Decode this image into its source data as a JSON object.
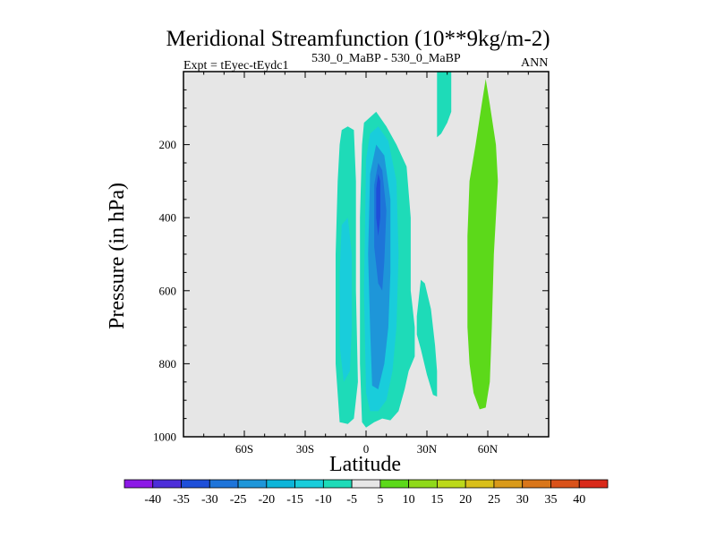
{
  "chart_data": {
    "type": "contour",
    "title": "Meridional Streamfunction (10**9kg/m-2)",
    "left_string": "Expt = tEyec-tEydc1",
    "center_string": "530_0_MaBP - 530_0_MaBP",
    "right_string": "ANN",
    "xlabel": "Latitude",
    "ylabel": "Pressure (in hPa)",
    "xlim": [
      -90,
      90
    ],
    "ylim": [
      1000,
      0
    ],
    "x_ticks": [
      {
        "value": -60,
        "label": "60S"
      },
      {
        "value": -30,
        "label": "30S"
      },
      {
        "value": 0,
        "label": "0"
      },
      {
        "value": 30,
        "label": "30N"
      },
      {
        "value": 60,
        "label": "60N"
      }
    ],
    "y_ticks": [
      {
        "value": 200,
        "label": "200"
      },
      {
        "value": 400,
        "label": "400"
      },
      {
        "value": 600,
        "label": "600"
      },
      {
        "value": 800,
        "label": "800"
      },
      {
        "value": 1000,
        "label": "1000"
      }
    ],
    "background_color": "#e6e6e6",
    "contour_levels": [
      -40,
      -35,
      -30,
      -25,
      -20,
      -15,
      -10,
      -5,
      5,
      10,
      15,
      20,
      25,
      30,
      35,
      40
    ],
    "contour_colors": [
      "#8c19e6",
      "#4d2ed9",
      "#1e4fd9",
      "#1e74d9",
      "#1e96d9",
      "#0db5d9",
      "#19cddb",
      "#1edbb8",
      "#e6e6e6",
      "#5cd91a",
      "#8fd91a",
      "#bcd91a",
      "#d9bf1a",
      "#d99a1a",
      "#d9761a",
      "#d9521a",
      "#d92a1a"
    ],
    "regions": [
      {
        "name": "cell-sh-outer",
        "value": "-10 to -5",
        "color": "#1edbb8",
        "polygon": [
          [
            -12,
            160
          ],
          [
            -9,
            150
          ],
          [
            -6,
            160
          ],
          [
            -5,
            300
          ],
          [
            -5,
            600
          ],
          [
            -4,
            850
          ],
          [
            -6,
            950
          ],
          [
            -9,
            965
          ],
          [
            -13,
            960
          ],
          [
            -15,
            800
          ],
          [
            -15,
            500
          ],
          [
            -14,
            300
          ],
          [
            -13,
            200
          ]
        ]
      },
      {
        "name": "cell-sh-inner",
        "value": "-15 to -10",
        "color": "#19cddb",
        "polygon": [
          [
            -12,
            420
          ],
          [
            -9,
            400
          ],
          [
            -7,
            500
          ],
          [
            -7,
            700
          ],
          [
            -8,
            820
          ],
          [
            -11,
            850
          ],
          [
            -13,
            750
          ],
          [
            -13,
            550
          ]
        ]
      },
      {
        "name": "cell-eq-outer",
        "value": "-10 to -5",
        "color": "#1edbb8",
        "polygon": [
          [
            -2,
            200
          ],
          [
            -1,
            140
          ],
          [
            5,
            110
          ],
          [
            10,
            150
          ],
          [
            15,
            200
          ],
          [
            20,
            260
          ],
          [
            22,
            400
          ],
          [
            22,
            600
          ],
          [
            24,
            700
          ],
          [
            24,
            780
          ],
          [
            21,
            820
          ],
          [
            19,
            870
          ],
          [
            16,
            930
          ],
          [
            12,
            955
          ],
          [
            8,
            950
          ],
          [
            4,
            960
          ],
          [
            0,
            975
          ],
          [
            -2,
            960
          ],
          [
            -3,
            800
          ],
          [
            -3,
            400
          ]
        ]
      },
      {
        "name": "cell-eq-mid",
        "value": "-15 to -10",
        "color": "#19cddb",
        "polygon": [
          [
            0,
            240
          ],
          [
            2,
            170
          ],
          [
            6,
            150
          ],
          [
            11,
            190
          ],
          [
            15,
            300
          ],
          [
            16,
            500
          ],
          [
            15,
            700
          ],
          [
            13,
            820
          ],
          [
            10,
            900
          ],
          [
            6,
            930
          ],
          [
            2,
            930
          ],
          [
            0,
            880
          ],
          [
            -1,
            600
          ]
        ]
      },
      {
        "name": "cell-eq-inner",
        "value": "-20 to -15",
        "color": "#1e96d9",
        "polygon": [
          [
            2,
            280
          ],
          [
            5,
            200
          ],
          [
            9,
            230
          ],
          [
            12,
            350
          ],
          [
            12,
            550
          ],
          [
            11,
            700
          ],
          [
            9,
            800
          ],
          [
            6,
            870
          ],
          [
            3,
            860
          ],
          [
            2,
            700
          ],
          [
            1,
            500
          ]
        ]
      },
      {
        "name": "cell-eq-core",
        "value": "-25 to -20",
        "color": "#1e74d9",
        "polygon": [
          [
            4,
            310
          ],
          [
            6,
            250
          ],
          [
            8,
            270
          ],
          [
            10,
            380
          ],
          [
            9,
            520
          ],
          [
            8,
            600
          ],
          [
            6,
            580
          ],
          [
            4,
            480
          ]
        ]
      },
      {
        "name": "cell-eq-max",
        "value": "-30 to -25",
        "color": "#1e4fd9",
        "polygon": [
          [
            5,
            320
          ],
          [
            6,
            280
          ],
          [
            7,
            300
          ],
          [
            7,
            400
          ],
          [
            6,
            450
          ],
          [
            5,
            400
          ]
        ]
      },
      {
        "name": "cell-nh-lower",
        "value": "-10 to -5",
        "color": "#1edbb8",
        "polygon": [
          [
            25,
            670
          ],
          [
            27,
            570
          ],
          [
            29,
            580
          ],
          [
            32,
            650
          ],
          [
            34,
            750
          ],
          [
            35,
            820
          ],
          [
            35,
            890
          ],
          [
            33,
            885
          ],
          [
            30,
            830
          ],
          [
            27,
            760
          ],
          [
            25,
            720
          ]
        ]
      },
      {
        "name": "cell-nh-upper",
        "value": "-10 to -5",
        "color": "#1edbb8",
        "polygon": [
          [
            35,
            0
          ],
          [
            42,
            0
          ],
          [
            42,
            60
          ],
          [
            42,
            110
          ],
          [
            40,
            140
          ],
          [
            37,
            170
          ],
          [
            35,
            180
          ]
        ]
      },
      {
        "name": "cell-nh-positive",
        "value": "5 to 10",
        "color": "#5cd91a",
        "polygon": [
          [
            59,
            20
          ],
          [
            61,
            90
          ],
          [
            64,
            200
          ],
          [
            65,
            300
          ],
          [
            63,
            500
          ],
          [
            62,
            700
          ],
          [
            61,
            850
          ],
          [
            59,
            920
          ],
          [
            56,
            925
          ],
          [
            53,
            880
          ],
          [
            51,
            800
          ],
          [
            50,
            700
          ],
          [
            50,
            450
          ],
          [
            51,
            300
          ],
          [
            54,
            200
          ],
          [
            57,
            90
          ]
        ]
      }
    ]
  }
}
